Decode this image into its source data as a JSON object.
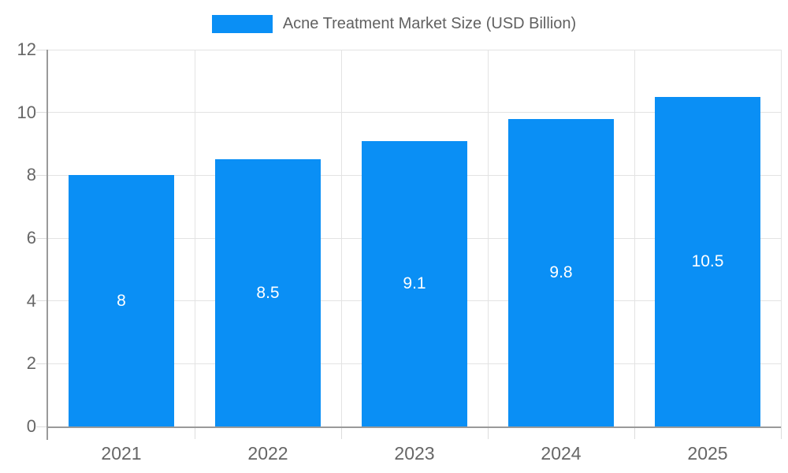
{
  "legend": {
    "label": "Acne Treatment Market Size (USD Billion)",
    "swatch_color": "#0a8ff5"
  },
  "chart_data": {
    "type": "bar",
    "title": "Acne Treatment Market Size (USD Billion)",
    "categories": [
      "2021",
      "2022",
      "2023",
      "2024",
      "2025"
    ],
    "values": [
      8,
      8.5,
      9.1,
      9.8,
      10.5
    ],
    "data_labels": [
      "8",
      "8.5",
      "9.1",
      "9.8",
      "10.5"
    ],
    "series": [
      {
        "name": "Acne Treatment Market Size (USD Billion)",
        "values": [
          8,
          8.5,
          9.1,
          9.8,
          10.5
        ]
      }
    ],
    "xlabel": "",
    "ylabel": "",
    "ylim": [
      0,
      12
    ],
    "yticks": [
      0,
      2,
      4,
      6,
      8,
      10,
      12
    ],
    "grid": true,
    "legend_position": "top-center",
    "colors": {
      "bar": "#0a8ff5",
      "bar_label_text": "#ffffff",
      "axis_line": "#9a9a9a",
      "gridline": "#e3e3e3",
      "tick_text": "#666666",
      "legend_text": "#616161",
      "background": "#ffffff"
    }
  }
}
